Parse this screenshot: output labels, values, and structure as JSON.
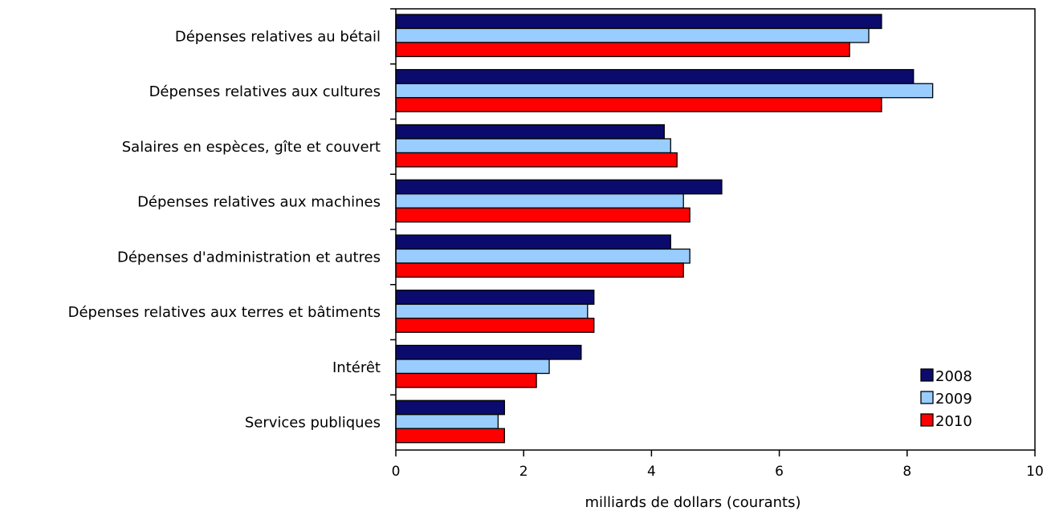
{
  "chart_data": {
    "type": "bar",
    "orientation": "horizontal",
    "categories": [
      "Dépenses relatives au bétail",
      "Dépenses relatives aux cultures",
      "Salaires en espèces, gîte et couvert",
      "Dépenses relatives aux machines",
      "Dépenses d'administration et autres",
      "Dépenses relatives aux terres et bâtiments",
      "Intérêt",
      "Services publiques"
    ],
    "series": [
      {
        "name": "2008",
        "color": "#0b0b6e",
        "values": [
          7.6,
          8.1,
          4.2,
          5.1,
          4.3,
          3.1,
          2.9,
          1.7
        ]
      },
      {
        "name": "2009",
        "color": "#99ccff",
        "values": [
          7.4,
          8.4,
          4.3,
          4.5,
          4.6,
          3.0,
          2.4,
          1.6
        ]
      },
      {
        "name": "2010",
        "color": "#ff0000",
        "values": [
          7.1,
          7.6,
          4.4,
          4.6,
          4.5,
          3.1,
          2.2,
          1.7
        ]
      }
    ],
    "xlabel": "milliards de dollars (courants)",
    "xlim": [
      0,
      10
    ],
    "xticks": [
      "0",
      "2",
      "4",
      "6",
      "8",
      "10"
    ],
    "grid": false,
    "legend_position": "bottom-right"
  }
}
